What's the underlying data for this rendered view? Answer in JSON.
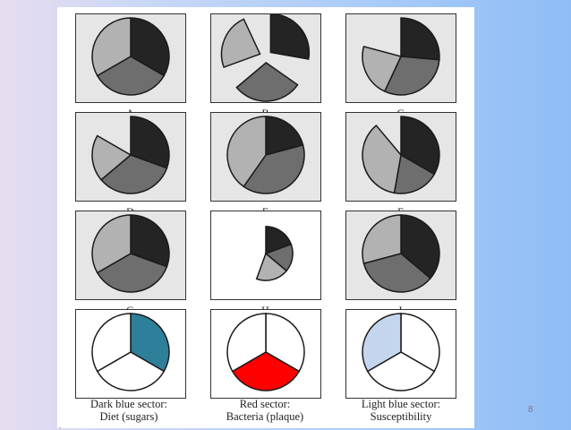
{
  "colors": {
    "dark": "#242424",
    "mid": "#6e6e6e",
    "light": "#b2b2b2",
    "diet_blue": "#2e7f99",
    "bacteria_red": "#ff0000",
    "susceptibility_blue": "#c4d6ee"
  },
  "panels": [
    {
      "label": "A",
      "style": "shade",
      "sectors": [
        {
          "from": 0,
          "to": 120,
          "tone": "dark"
        },
        {
          "from": 120,
          "to": 240,
          "tone": "mid"
        },
        {
          "from": 240,
          "to": 360,
          "tone": "light"
        }
      ]
    },
    {
      "label": "B",
      "style": "shade",
      "sectors": [
        {
          "from": 0,
          "to": 100,
          "tone": "dark",
          "shift": 7
        },
        {
          "from": 125,
          "to": 230,
          "tone": "mid",
          "shift": 7
        },
        {
          "from": 250,
          "to": 335,
          "tone": "light",
          "shift": 7
        }
      ]
    },
    {
      "label": "C",
      "style": "shade",
      "sectors": [
        {
          "from": 0,
          "to": 95,
          "tone": "dark"
        },
        {
          "from": 95,
          "to": 205,
          "tone": "mid"
        },
        {
          "from": 205,
          "to": 285,
          "tone": "light"
        }
      ]
    },
    {
      "label": "D",
      "style": "shade",
      "sectors": [
        {
          "from": 0,
          "to": 110,
          "tone": "dark"
        },
        {
          "from": 110,
          "to": 230,
          "tone": "mid"
        },
        {
          "from": 230,
          "to": 300,
          "tone": "light"
        }
      ]
    },
    {
      "label": "E",
      "style": "shade",
      "sectors": [
        {
          "from": 0,
          "to": 75,
          "tone": "dark"
        },
        {
          "from": 75,
          "to": 215,
          "tone": "mid"
        },
        {
          "from": 215,
          "to": 360,
          "tone": "light"
        }
      ]
    },
    {
      "label": "F",
      "style": "shade",
      "sectors": [
        {
          "from": 0,
          "to": 120,
          "tone": "dark"
        },
        {
          "from": 120,
          "to": 190,
          "tone": "mid"
        },
        {
          "from": 190,
          "to": 320,
          "tone": "light"
        }
      ]
    },
    {
      "label": "G",
      "style": "shade",
      "sectors": [
        {
          "from": 0,
          "to": 110,
          "tone": "dark"
        },
        {
          "from": 110,
          "to": 240,
          "tone": "mid"
        },
        {
          "from": 240,
          "to": 360,
          "tone": "light"
        }
      ]
    },
    {
      "label": "H",
      "style": "plain",
      "sectors": [
        {
          "from": 0,
          "to": 70,
          "tone": "dark",
          "r_scale": 0.7
        },
        {
          "from": 70,
          "to": 130,
          "tone": "mid",
          "r_scale": 0.7
        },
        {
          "from": 130,
          "to": 200,
          "tone": "light",
          "r_scale": 0.7
        }
      ]
    },
    {
      "label": "I",
      "style": "shade",
      "sectors": [
        {
          "from": 0,
          "to": 130,
          "tone": "dark"
        },
        {
          "from": 130,
          "to": 255,
          "tone": "mid"
        },
        {
          "from": 255,
          "to": 360,
          "tone": "light"
        }
      ]
    },
    {
      "label": "",
      "style": "plain",
      "sectors": [
        {
          "from": 0,
          "to": 120,
          "tone": "diet_blue"
        },
        {
          "from": 120,
          "to": 240,
          "tone": "white"
        },
        {
          "from": 240,
          "to": 360,
          "tone": "white"
        }
      ]
    },
    {
      "label": "",
      "style": "plain",
      "sectors": [
        {
          "from": 0,
          "to": 120,
          "tone": "white"
        },
        {
          "from": 120,
          "to": 240,
          "tone": "bacteria_red"
        },
        {
          "from": 240,
          "to": 360,
          "tone": "white"
        }
      ]
    },
    {
      "label": "",
      "style": "plain",
      "sectors": [
        {
          "from": 0,
          "to": 120,
          "tone": "white"
        },
        {
          "from": 120,
          "to": 240,
          "tone": "white"
        },
        {
          "from": 240,
          "to": 360,
          "tone": "susceptibility_blue"
        }
      ]
    }
  ],
  "captions": {
    "diet_line1": "Dark blue sector:",
    "diet_line2": "Diet (sugars)",
    "bacteria_line1": "Red sector:",
    "bacteria_line2": "Bacteria (plaque)",
    "susceptibility_line1": "Light blue sector:",
    "susceptibility_line2": "Susceptibility"
  },
  "slide_number": "8",
  "corner_mark": "."
}
